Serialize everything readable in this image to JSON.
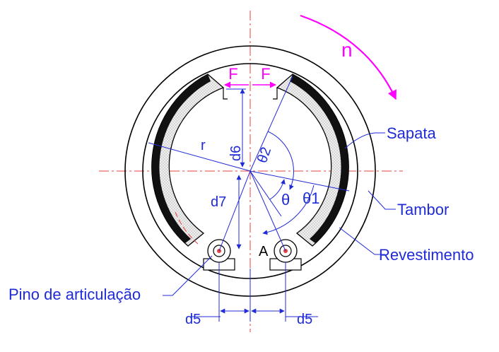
{
  "labels": {
    "rotation": "n",
    "force_left": "F",
    "force_right": "F",
    "radius": "r",
    "d6": "d6",
    "d7": "d7",
    "d5_left": "d5",
    "d5_right": "d5",
    "theta": "θ",
    "theta1": "θ1",
    "theta2": "θ2",
    "point_a": "A",
    "sapata": "Sapata",
    "tambor": "Tambor",
    "revestimento": "Revestimento",
    "pino": "Pino de articulação"
  },
  "colors": {
    "outline": "#000000",
    "dimension": "#1f2bd6",
    "centerline": "#e8403c",
    "force": "#ff00ff",
    "shoe_fill": "#e8e8e8",
    "lining": "#111111"
  }
}
